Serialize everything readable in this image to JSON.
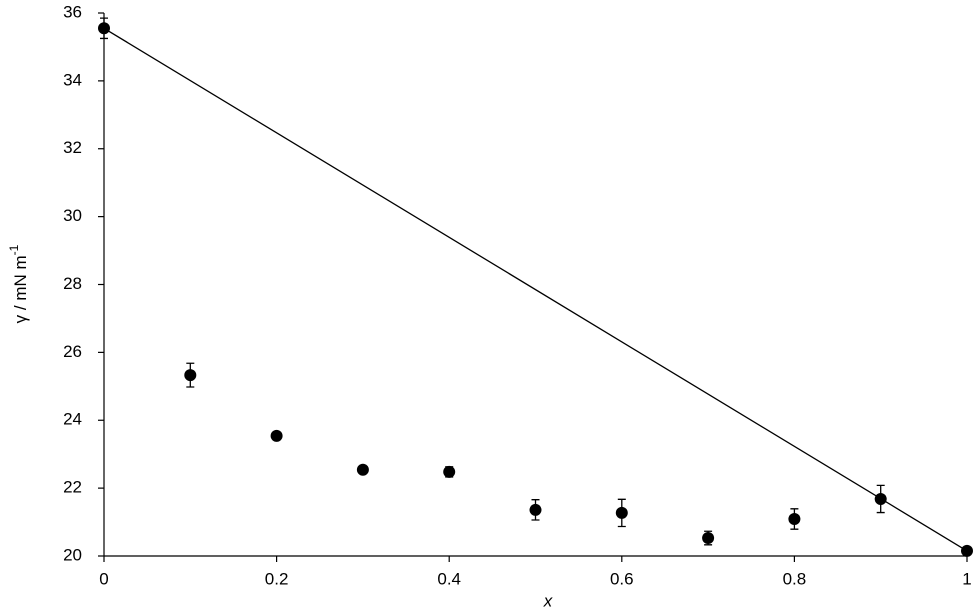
{
  "chart_data": {
    "type": "scatter",
    "xlabel": "x",
    "ylabel": "γ / mN m",
    "ylabel_sup": "-1",
    "x": [
      0,
      0.1,
      0.2,
      0.3,
      0.4,
      0.5,
      0.6,
      0.7,
      0.8,
      0.9,
      1
    ],
    "series": [
      {
        "color": "#000000",
        "values": [
          35.55,
          25.33,
          23.54,
          22.54,
          22.48,
          21.36,
          21.27,
          20.53,
          21.09,
          21.68,
          20.15
        ],
        "errors": [
          0.3,
          0.35,
          0.1,
          0.05,
          0.15,
          0.3,
          0.4,
          0.2,
          0.3,
          0.4,
          0.1
        ]
      }
    ],
    "line": {
      "x": [
        0,
        1
      ],
      "values": [
        35.55,
        20.15
      ],
      "color": "#000000"
    },
    "xlim": [
      0,
      1
    ],
    "ylim": [
      20,
      36
    ],
    "xticks": [
      0,
      0.2,
      0.4,
      0.6,
      0.8,
      1
    ],
    "yticks": [
      20,
      22,
      24,
      26,
      28,
      30,
      32,
      34,
      36
    ]
  }
}
